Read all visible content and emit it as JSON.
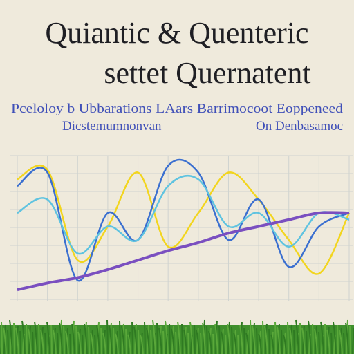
{
  "chart_data": {
    "type": "line",
    "title": "Quiantic & Quenteric",
    "subtitle": "settet Quernatent",
    "annotations": [
      "Pceloloy b Ubbarations LAars Barrimocoot Eoppeneed",
      "Dicstemumnonvan",
      "On Denbasamoc"
    ],
    "categories": [
      null,
      null,
      null,
      null,
      null,
      null,
      null,
      null,
      null,
      null,
      null,
      null
    ],
    "ylim": [
      0,
      10
    ],
    "grid": true,
    "series": [
      {
        "name": null,
        "color": "#f2d51e",
        "values": [
          8.5,
          9.2,
          2.5,
          5,
          9,
          3.5,
          6,
          9,
          7,
          4,
          1.5,
          6
        ]
      },
      {
        "name": null,
        "color": "#3a6fd0",
        "values": [
          8,
          9,
          1,
          6,
          4,
          9.5,
          9,
          4,
          7,
          2,
          5,
          6
        ]
      },
      {
        "name": null,
        "color": "#5fc3e0",
        "values": [
          6,
          7,
          3,
          5,
          4,
          8,
          8.5,
          5,
          6,
          3.5,
          6,
          5.5
        ]
      },
      {
        "name": null,
        "color": "#7a4fc0",
        "values": [
          0.3,
          0.8,
          1.2,
          1.8,
          2.5,
          3.2,
          3.8,
          4.5,
          5,
          5.5,
          6,
          6
        ]
      }
    ]
  }
}
